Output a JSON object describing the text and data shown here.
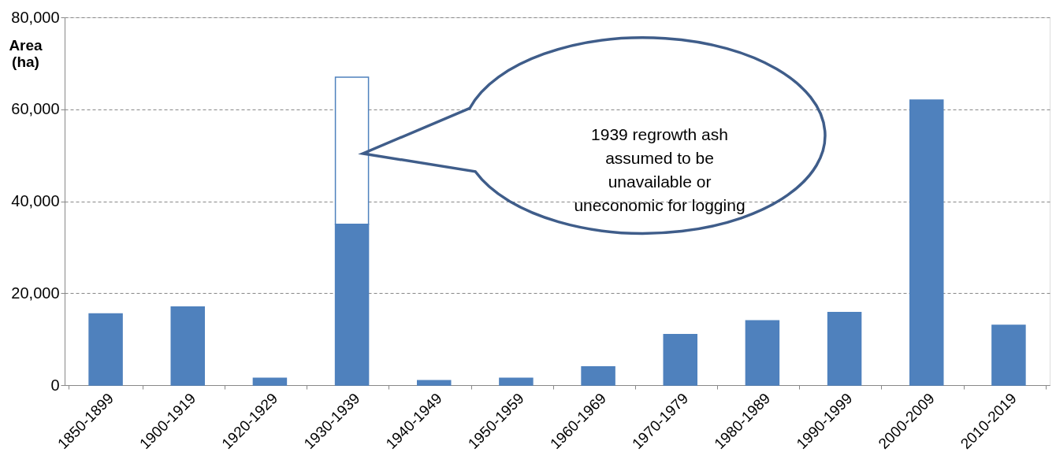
{
  "chart_data": {
    "type": "bar",
    "stacked": true,
    "ylabel": "Area\n(ha)",
    "categories": [
      "1850-1899",
      "1900-1919",
      "1920-1929",
      "1930-1939",
      "1940-1949",
      "1950-1959",
      "1960-1969",
      "1970-1979",
      "1980-1989",
      "1990-1999",
      "2000-2009",
      "2010-2019"
    ],
    "series": [
      {
        "color": "#4f81bd",
        "values": [
          15500,
          17000,
          1500,
          35000,
          1000,
          1500,
          4000,
          11000,
          14000,
          15800,
          62000,
          13000
        ]
      },
      {
        "color": "#ffffff",
        "values": [
          null,
          null,
          null,
          32000,
          null,
          null,
          null,
          null,
          null,
          null,
          null,
          null
        ]
      }
    ],
    "ylim": [
      0,
      80000
    ],
    "yticks": [
      0,
      {
        "value": 20000,
        "label": "20,000"
      },
      {
        "value": 40000,
        "label": "40,000"
      },
      {
        "value": 60000,
        "label": "60,000"
      },
      {
        "value": 80000,
        "label": "80,000"
      }
    ],
    "grid": "y",
    "legend": false,
    "annotations": [
      "1939 regrowth ash assumed to be unavailable or uneconomic for logging"
    ]
  }
}
